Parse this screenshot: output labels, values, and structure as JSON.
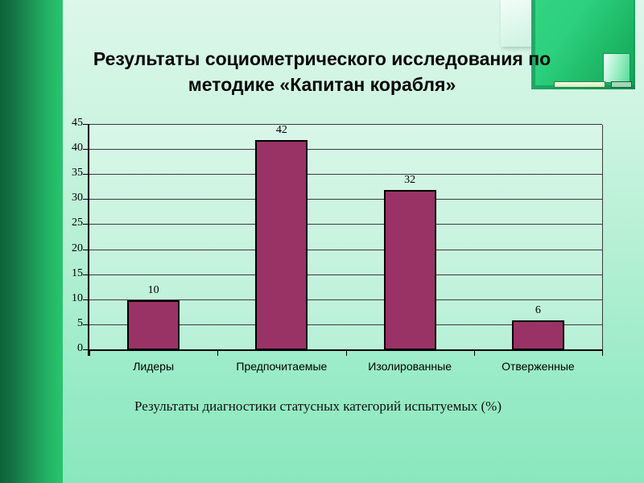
{
  "slide": {
    "title_line1": "Результаты социометрического исследования по",
    "title_line2": "методике «Капитан корабля»"
  },
  "chart_data": {
    "type": "bar",
    "categories": [
      "Лидеры",
      "Предпочитаемые",
      "Изолированные",
      "Отверженные"
    ],
    "values": [
      10,
      42,
      32,
      6
    ],
    "data_labels": [
      "10",
      "42",
      "32",
      "6"
    ],
    "title": "",
    "xlabel": "",
    "ylabel": "",
    "ylim": [
      0,
      45
    ],
    "yticks": [
      0,
      5,
      10,
      15,
      20,
      25,
      30,
      35,
      40,
      45
    ],
    "grid": true,
    "legend": "none",
    "bar_color": "#993366",
    "bar_border_color": "#000000",
    "caption": "Результаты диагностики статусных категорий испытуемых (%)"
  },
  "colors": {
    "background_top": "#ddf7ea",
    "background_bottom": "#8ae7bd",
    "left_band_dark": "#0d6337",
    "left_band_light": "#28c56e",
    "decoration_green": "#22c06c",
    "bar_fill": "#993366",
    "gridline": "#3a3a3a",
    "text": "#000000"
  }
}
